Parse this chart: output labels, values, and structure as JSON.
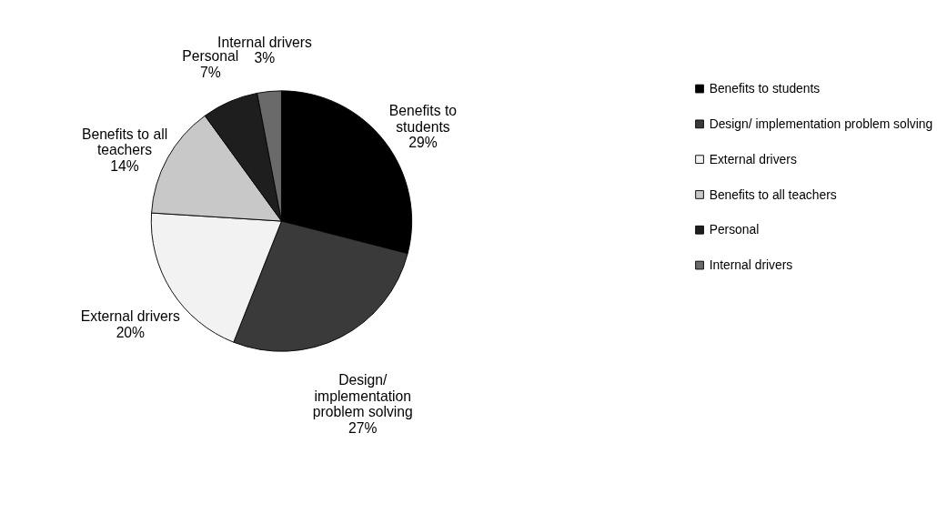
{
  "chart_data": {
    "type": "pie",
    "categories": [
      "Benefits to students",
      "Design/ implementation problem solving",
      "External drivers",
      "Benefits to all teachers",
      "Personal",
      "Internal drivers"
    ],
    "values": [
      29,
      27,
      20,
      14,
      7,
      3
    ],
    "value_labels": [
      "29%",
      "27%",
      "20%",
      "14%",
      "7%",
      "3%"
    ],
    "colors": [
      "#000000",
      "#3a3a3a",
      "#f2f2f2",
      "#c8c8c8",
      "#1e1e1e",
      "#6a6a6a"
    ],
    "legend": "right"
  }
}
